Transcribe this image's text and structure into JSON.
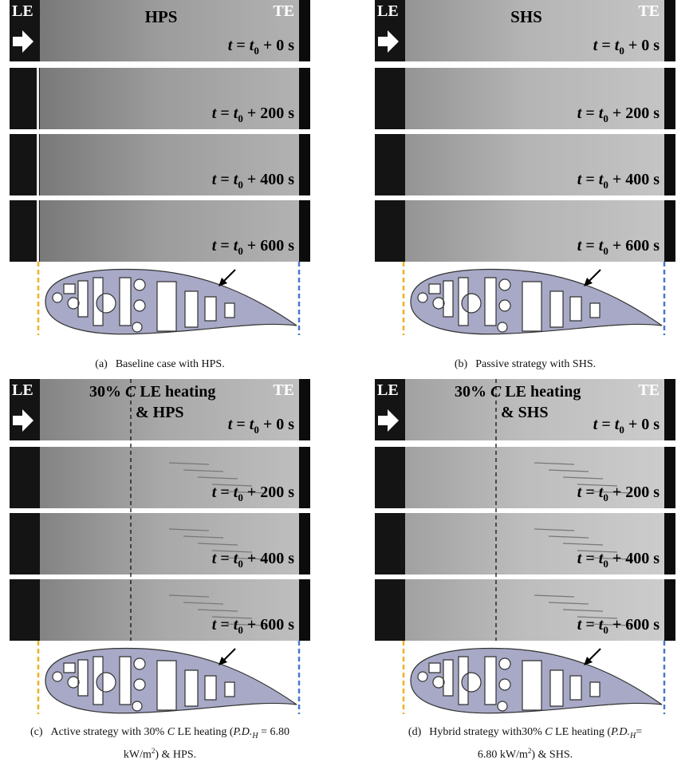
{
  "time_label": {
    "t": "t",
    "eq": "=",
    "t0": "t",
    "sub": "0"
  },
  "panels": [
    {
      "le": "LE",
      "te": "TE",
      "name": "HPS",
      "times": [
        "+ 0 s",
        "+ 200 s",
        "+ 400 s",
        "+ 600 s"
      ],
      "caption": {
        "label": "(a)",
        "lines": [
          [
            {
              "text": "Baseline case with HPS."
            }
          ]
        ]
      }
    },
    {
      "le": "LE",
      "te": "TE",
      "name": "SHS",
      "times": [
        "+ 0 s",
        "+ 200 s",
        "+ 400 s",
        "+ 600 s"
      ],
      "caption": {
        "label": "(b)",
        "lines": [
          [
            {
              "text": "Passive strategy with SHS."
            }
          ]
        ]
      }
    },
    {
      "le": "LE",
      "te": "TE",
      "heating": {
        "pct": "30%",
        "c": "C",
        "rest": "LE heating",
        "amp": "& HPS"
      },
      "times": [
        "+ 0 s",
        "+ 200 s",
        "+ 400 s",
        "+ 600 s"
      ],
      "caption": {
        "label": "(c)",
        "lines": [
          [
            {
              "text": "Active strategy with 30% "
            },
            {
              "text": "C",
              "style": "italic"
            },
            {
              "text": " LE heating ("
            },
            {
              "text": "P.D.",
              "style": "italic"
            },
            {
              "text": "H",
              "style": "italic-sub"
            },
            {
              "text": " = 6.80"
            }
          ],
          [
            {
              "text": "kW/m"
            },
            {
              "text": "2",
              "style": "sup"
            },
            {
              "text": ") & HPS."
            }
          ]
        ]
      }
    },
    {
      "le": "LE",
      "te": "TE",
      "heating": {
        "pct": "30%",
        "c": "C",
        "rest": "LE heating",
        "amp": "& SHS"
      },
      "times": [
        "+ 0 s",
        "+ 200 s",
        "+ 400 s",
        "+ 600 s"
      ],
      "caption": {
        "label": "(d)",
        "lines": [
          [
            {
              "text": "Hybrid strategy with30% "
            },
            {
              "text": "C",
              "style": "italic"
            },
            {
              "text": " LE heating ("
            },
            {
              "text": "P.D.",
              "style": "italic"
            },
            {
              "text": "H",
              "style": "italic-sub"
            },
            {
              "text": "="
            }
          ],
          [
            {
              "text": "6.80 kW/m"
            },
            {
              "text": "2",
              "style": "sup"
            },
            {
              "text": ") & SHS."
            }
          ]
        ]
      }
    }
  ]
}
